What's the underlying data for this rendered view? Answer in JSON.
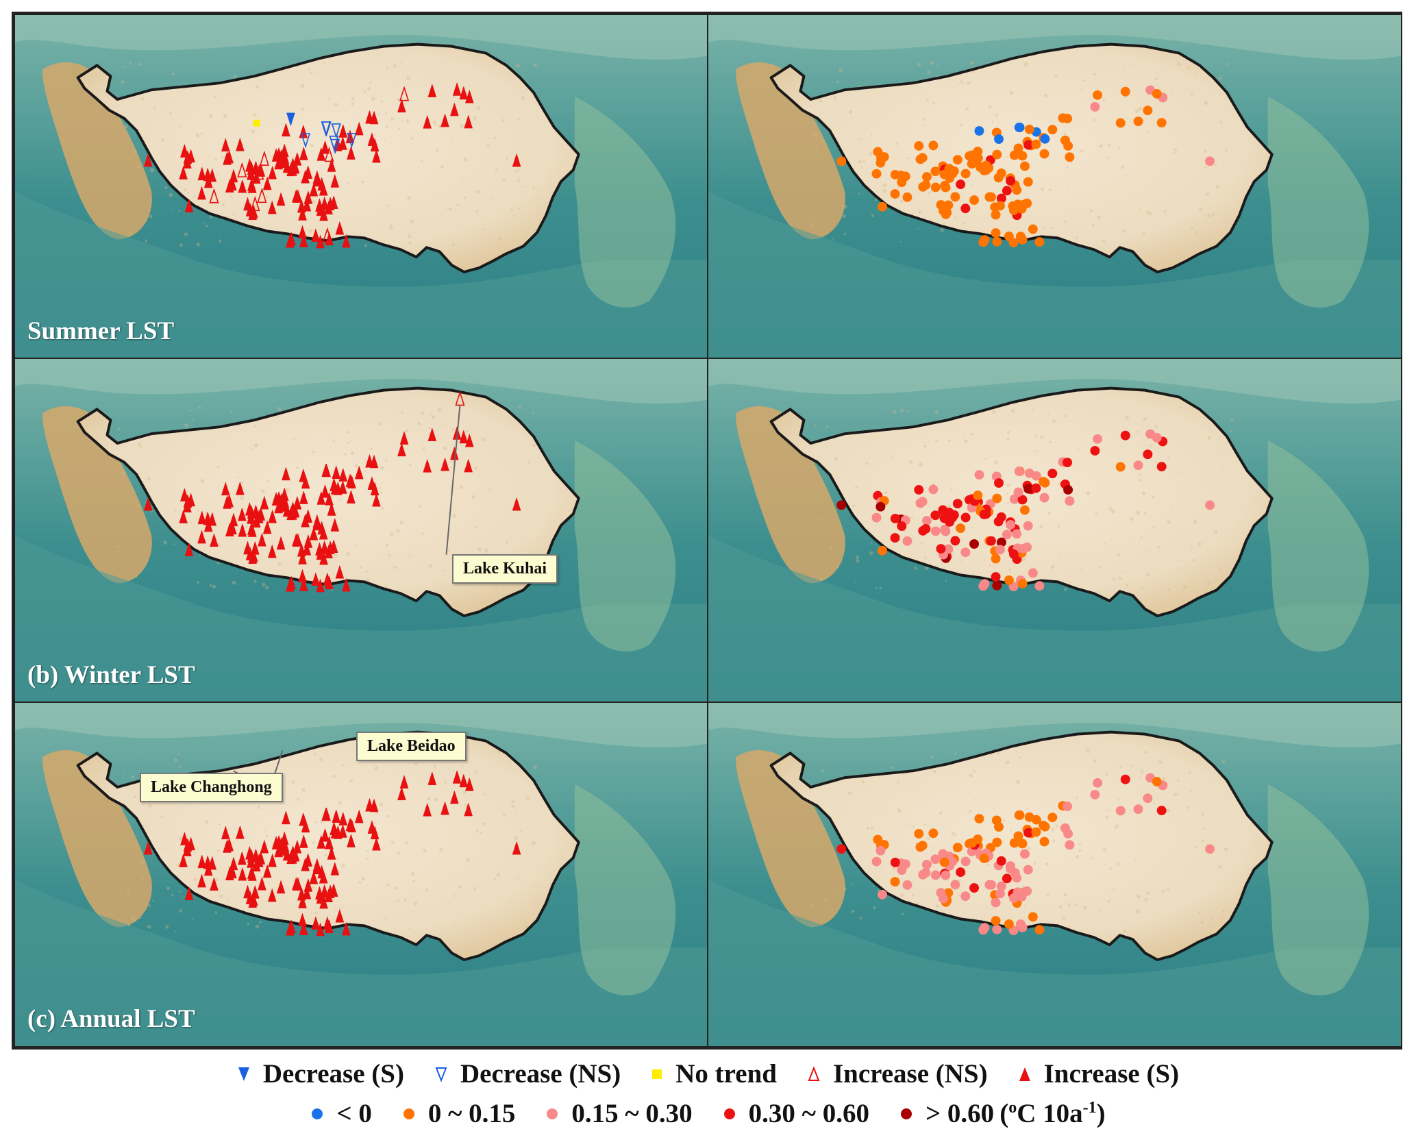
{
  "panels": [
    {
      "id": "summer-symbols",
      "label": "Summer LST"
    },
    {
      "id": "summer-rates",
      "label": ""
    },
    {
      "id": "winter-symbols",
      "label": "(b) Winter LST"
    },
    {
      "id": "winter-rates",
      "label": ""
    },
    {
      "id": "annual-symbols",
      "label": "(c) Annual LST"
    },
    {
      "id": "annual-rates",
      "label": ""
    }
  ],
  "callouts": {
    "kuhai": "Lake Kuhai",
    "beidao": "Lake Beidao",
    "changhong": "Lake Changhong"
  },
  "legend": {
    "trend": [
      {
        "key": "dec_s",
        "label": "Decrease (S)",
        "color": "#1a5fe0",
        "icon": "filled-down-triangle-icon"
      },
      {
        "key": "dec_ns",
        "label": "Decrease (NS)",
        "color": "#1a5fe0",
        "icon": "hollow-down-triangle-icon"
      },
      {
        "key": "none",
        "label": "No trend",
        "color": "#ffee00",
        "icon": "square-icon"
      },
      {
        "key": "inc_ns",
        "label": "Increase (NS)",
        "color": "#e81010",
        "icon": "hollow-up-triangle-icon"
      },
      {
        "key": "inc_s",
        "label": "Increase (S)",
        "color": "#e81010",
        "icon": "filled-up-triangle-icon"
      }
    ],
    "rate": [
      {
        "key": "r0",
        "label": "< 0",
        "color": "#1a73e8"
      },
      {
        "key": "r1",
        "label": "0 ~ 0.15",
        "color": "#ff7300"
      },
      {
        "key": "r2",
        "label": "0.15 ~ 0.30",
        "color": "#f98888"
      },
      {
        "key": "r3",
        "label": "0.30 ~ 0.60",
        "color": "#ee1111"
      },
      {
        "key": "r4",
        "label": "> 0.60",
        "color": "#a80000"
      }
    ],
    "unit_prefix": "(",
    "unit_deg": "o",
    "unit_mid": "C 10a",
    "unit_exp": "-1",
    "unit_suffix": ")"
  },
  "colors": {
    "sea_dark": "#3c8e8e",
    "sea_light": "#79b3a8",
    "plateau": "#ecdcc0",
    "mountain": "#d7a86a",
    "boundary": "#1a1a1a"
  }
}
